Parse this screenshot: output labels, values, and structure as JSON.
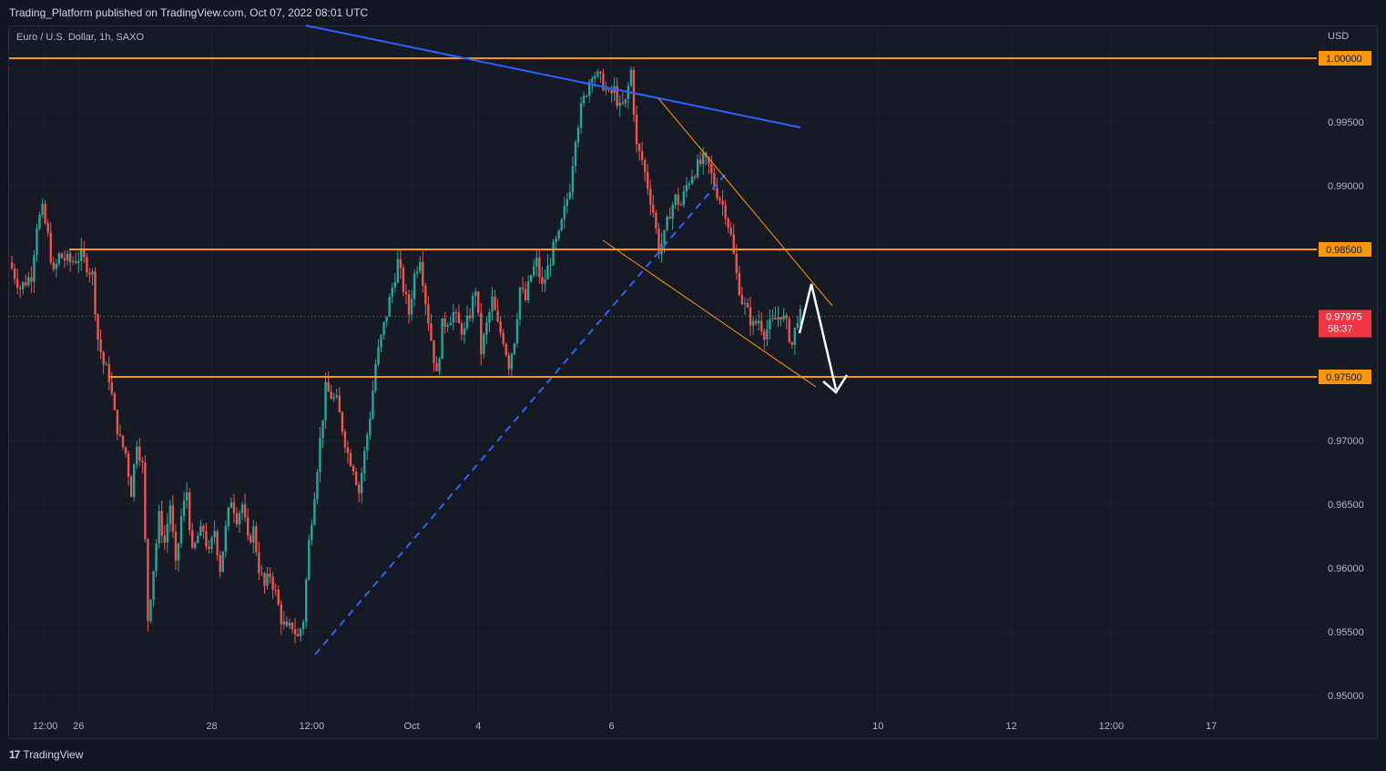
{
  "header": {
    "published_text": "Trading_Platform published on TradingView.com, Oct 07, 2022 08:01 UTC"
  },
  "symbol_line": "Euro / U.S. Dollar, 1h, SAXO",
  "currency": "USD",
  "footer": {
    "brand": "TradingView",
    "logo_glyph": "17"
  },
  "colors": {
    "up": "#26a69a",
    "down": "#ef5350",
    "level": "#ff9800",
    "trend": "#2962ff",
    "arrow": "#ffffff",
    "price_tag": "#f23645"
  },
  "chart_data": {
    "type": "candlestick",
    "title": "",
    "xlabel": "",
    "ylabel": "",
    "ylim": [
      0.9485,
      1.0025
    ],
    "y_ticks": [
      "0.95000",
      "0.95500",
      "0.96000",
      "0.96500",
      "0.97000",
      "0.99000",
      "0.99500"
    ],
    "x_ticks": [
      {
        "label": "12:00",
        "t": 12
      },
      {
        "label": "26",
        "t": 24
      },
      {
        "label": "28",
        "t": 72
      },
      {
        "label": "12:00",
        "t": 108
      },
      {
        "label": "Oct",
        "t": 144
      },
      {
        "label": "4",
        "t": 168
      },
      {
        "label": "6",
        "t": 216
      },
      {
        "label": "10",
        "t": 312
      },
      {
        "label": "12",
        "t": 360
      },
      {
        "label": "12:00",
        "t": 396
      },
      {
        "label": "17",
        "t": 432
      }
    ],
    "xlim": [
      -1,
      470
    ],
    "horizontal_levels": [
      {
        "label": "1.00000",
        "value": 1.0
      },
      {
        "label": "0.98500",
        "value": 0.985
      },
      {
        "label": "0.97500",
        "value": 0.975
      }
    ],
    "last_price": {
      "label": "0.97975",
      "value": 0.97975,
      "countdown": "58:37"
    },
    "close_path": [
      [
        0,
        0.984
      ],
      [
        4,
        0.982
      ],
      [
        8,
        0.983
      ],
      [
        10,
        0.987
      ],
      [
        12,
        0.988
      ],
      [
        14,
        0.986
      ],
      [
        16,
        0.983
      ],
      [
        18,
        0.9845
      ],
      [
        22,
        0.984
      ],
      [
        26,
        0.9845
      ],
      [
        30,
        0.983
      ],
      [
        32,
        0.978
      ],
      [
        34,
        0.976
      ],
      [
        36,
        0.975
      ],
      [
        38,
        0.972
      ],
      [
        40,
        0.97
      ],
      [
        42,
        0.969
      ],
      [
        44,
        0.966
      ],
      [
        46,
        0.97
      ],
      [
        48,
        0.968
      ],
      [
        50,
        0.956
      ],
      [
        52,
        0.96
      ],
      [
        54,
        0.964
      ],
      [
        56,
        0.962
      ],
      [
        58,
        0.965
      ],
      [
        60,
        0.96
      ],
      [
        62,
        0.964
      ],
      [
        64,
        0.966
      ],
      [
        66,
        0.961
      ],
      [
        68,
        0.9625
      ],
      [
        70,
        0.963
      ],
      [
        72,
        0.961
      ],
      [
        74,
        0.963
      ],
      [
        76,
        0.96
      ],
      [
        78,
        0.963
      ],
      [
        80,
        0.9655
      ],
      [
        82,
        0.964
      ],
      [
        84,
        0.965
      ],
      [
        86,
        0.962
      ],
      [
        88,
        0.963
      ],
      [
        90,
        0.96
      ],
      [
        92,
        0.9585
      ],
      [
        94,
        0.9595
      ],
      [
        96,
        0.958
      ],
      [
        98,
        0.956
      ],
      [
        100,
        0.955
      ],
      [
        102,
        0.9555
      ],
      [
        104,
        0.9545
      ],
      [
        106,
        0.956
      ],
      [
        108,
        0.962
      ],
      [
        110,
        0.966
      ],
      [
        112,
        0.97
      ],
      [
        114,
        0.974
      ],
      [
        116,
        0.9735
      ],
      [
        118,
        0.973
      ],
      [
        120,
        0.971
      ],
      [
        122,
        0.969
      ],
      [
        124,
        0.968
      ],
      [
        126,
        0.966
      ],
      [
        128,
        0.969
      ],
      [
        130,
        0.972
      ],
      [
        132,
        0.976
      ],
      [
        134,
        0.978
      ],
      [
        136,
        0.98
      ],
      [
        138,
        0.982
      ],
      [
        140,
        0.984
      ],
      [
        142,
        0.982
      ],
      [
        144,
        0.98
      ],
      [
        146,
        0.983
      ],
      [
        148,
        0.9845
      ],
      [
        150,
        0.981
      ],
      [
        152,
        0.978
      ],
      [
        154,
        0.975
      ],
      [
        156,
        0.979
      ],
      [
        158,
        0.9795
      ],
      [
        160,
        0.98
      ],
      [
        162,
        0.979
      ],
      [
        164,
        0.9785
      ],
      [
        166,
        0.98
      ],
      [
        168,
        0.982
      ],
      [
        170,
        0.977
      ],
      [
        172,
        0.979
      ],
      [
        174,
        0.981
      ],
      [
        176,
        0.979
      ],
      [
        178,
        0.978
      ],
      [
        180,
        0.976
      ],
      [
        182,
        0.978
      ],
      [
        184,
        0.982
      ],
      [
        186,
        0.981
      ],
      [
        188,
        0.983
      ],
      [
        190,
        0.984
      ],
      [
        192,
        0.982
      ],
      [
        194,
        0.9835
      ],
      [
        196,
        0.985
      ],
      [
        198,
        0.986
      ],
      [
        200,
        0.988
      ],
      [
        202,
        0.99
      ],
      [
        204,
        0.994
      ],
      [
        206,
        0.996
      ],
      [
        208,
        0.9975
      ],
      [
        210,
        0.999
      ],
      [
        212,
        0.9985
      ],
      [
        214,
        0.998
      ],
      [
        216,
        0.997
      ],
      [
        218,
        0.9975
      ],
      [
        220,
        0.996
      ],
      [
        222,
        0.9965
      ],
      [
        224,
        0.999
      ],
      [
        226,
        0.993
      ],
      [
        228,
        0.992
      ],
      [
        230,
        0.99
      ],
      [
        232,
        0.988
      ],
      [
        234,
        0.985
      ],
      [
        236,
        0.986
      ],
      [
        238,
        0.988
      ],
      [
        240,
        0.989
      ],
      [
        242,
        0.9885
      ],
      [
        244,
        0.99
      ],
      [
        246,
        0.991
      ],
      [
        248,
        0.9915
      ],
      [
        250,
        0.992
      ],
      [
        252,
        0.9915
      ],
      [
        254,
        0.99
      ],
      [
        256,
        0.989
      ],
      [
        258,
        0.988
      ],
      [
        260,
        0.986
      ],
      [
        262,
        0.983
      ],
      [
        264,
        0.981
      ],
      [
        266,
        0.98
      ],
      [
        268,
        0.979
      ],
      [
        270,
        0.9795
      ],
      [
        272,
        0.9785
      ],
      [
        274,
        0.979
      ],
      [
        276,
        0.9795
      ],
      [
        278,
        0.98
      ],
      [
        280,
        0.979
      ],
      [
        282,
        0.9775
      ],
      [
        284,
        0.97975
      ]
    ]
  }
}
